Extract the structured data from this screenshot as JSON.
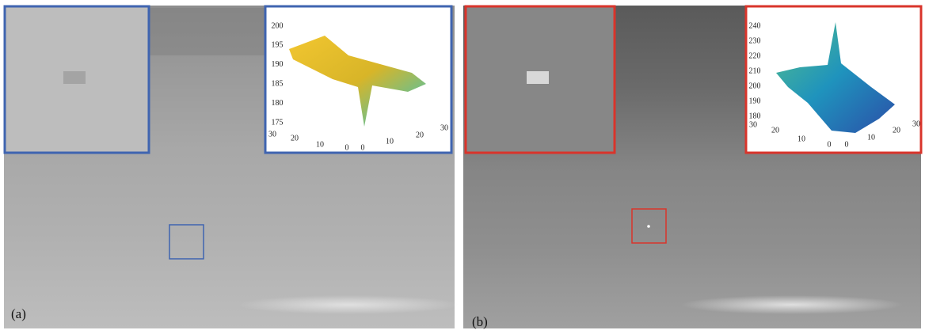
{
  "panels": [
    {
      "label": "(a)",
      "plot": {
        "zticks": [
          200,
          195,
          190,
          185,
          180,
          175
        ],
        "left_axis_ticks": [
          30,
          20,
          10,
          0
        ],
        "right_axis_ticks": [
          0,
          10,
          20,
          30
        ]
      }
    },
    {
      "label": "(b)",
      "plot": {
        "zticks": [
          240,
          230,
          220,
          210,
          200,
          190,
          180
        ],
        "left_axis_ticks": [
          30,
          20,
          10,
          0
        ],
        "right_axis_ticks": [
          0,
          10,
          20,
          30
        ]
      }
    }
  ]
}
